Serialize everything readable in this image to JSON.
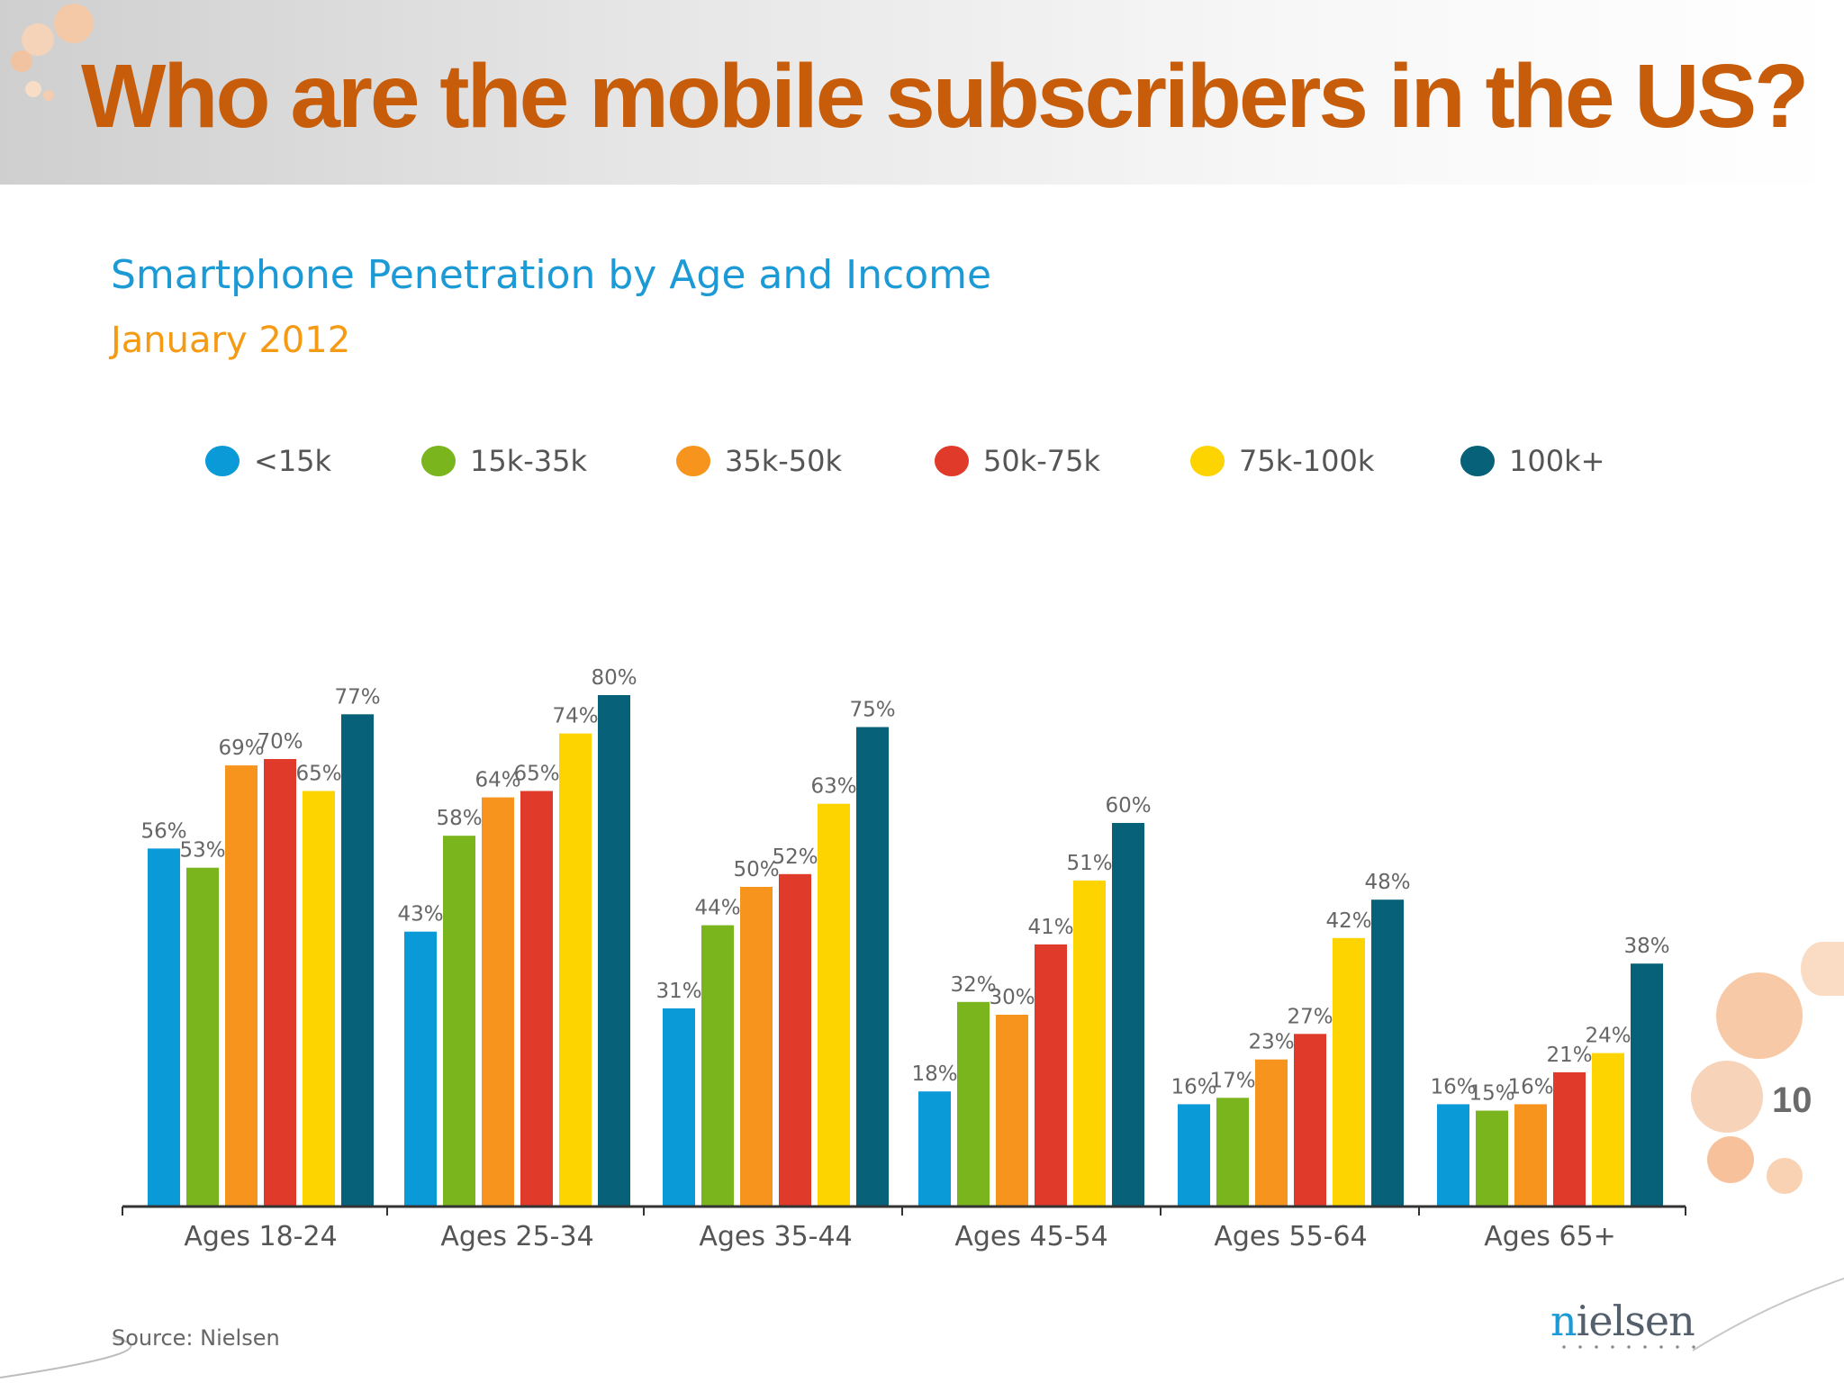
{
  "slide": {
    "title": "Who are the mobile subscribers in the US?",
    "page_number": "10",
    "source": "Source: Nielsen",
    "logo_text": "nielsen"
  },
  "chart_data": {
    "type": "bar",
    "title": "Smartphone Penetration by Age and Income",
    "subtitle": "January 2012",
    "categories": [
      "Ages 18-24",
      "Ages 25-34",
      "Ages 35-44",
      "Ages 45-54",
      "Ages 55-64",
      "Ages 65+"
    ],
    "series": [
      {
        "name": "<15k",
        "color": "#0a9ad8",
        "values": [
          56,
          43,
          31,
          18,
          16,
          16
        ],
        "labels": [
          "56%",
          "43%",
          "31%",
          "18%",
          "16%",
          "16%"
        ]
      },
      {
        "name": "15k-35k",
        "color": "#7ab51d",
        "values": [
          53,
          58,
          44,
          32,
          17,
          15
        ],
        "labels": [
          "53%",
          "58%",
          "44%",
          "32%",
          "17%",
          "15%"
        ]
      },
      {
        "name": "35k-50k",
        "color": "#f7941d",
        "values": [
          69,
          64,
          50,
          30,
          23,
          16
        ],
        "labels": [
          "69%",
          "64%",
          "50%",
          "30%",
          "23%",
          "16%"
        ]
      },
      {
        "name": "50k-75k",
        "color": "#e03a2b",
        "values": [
          70,
          65,
          52,
          41,
          27,
          21
        ],
        "labels": [
          "70%",
          "65%",
          "52%",
          "41%",
          "27%",
          "21%"
        ]
      },
      {
        "name": "75k-100k",
        "color": "#fdd400",
        "values": [
          65,
          74,
          63,
          51,
          42,
          24
        ],
        "labels": [
          "65%",
          "74%",
          "63%",
          "51%",
          "42%",
          "24%"
        ]
      },
      {
        "name": "100k+",
        "color": "#066179",
        "values": [
          77,
          80,
          75,
          60,
          48,
          38
        ],
        "labels": [
          "77%",
          "80%",
          "75%",
          "60%",
          "48%",
          "38%"
        ]
      }
    ],
    "ylim": [
      0,
      100
    ],
    "grid": false,
    "legend_position": "top"
  }
}
